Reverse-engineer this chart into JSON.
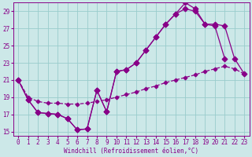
{
  "xlabel": "Windchill (Refroidissement éolien,°C)",
  "ylabel": "",
  "xlim": [
    -0.5,
    23.5
  ],
  "ylim": [
    14.5,
    30.0
  ],
  "xticks": [
    0,
    1,
    2,
    3,
    4,
    5,
    6,
    7,
    8,
    9,
    10,
    11,
    12,
    13,
    14,
    15,
    16,
    17,
    18,
    19,
    20,
    21,
    22,
    23
  ],
  "yticks": [
    15,
    17,
    19,
    21,
    23,
    25,
    27,
    29
  ],
  "bg_color": "#cce8e8",
  "grid_color": "#99cccc",
  "line_color": "#880088",
  "series": [
    {
      "x": [
        0,
        1,
        2,
        3,
        4,
        5,
        6,
        7,
        8,
        9,
        10,
        11,
        12,
        13,
        14,
        15,
        16,
        17,
        18,
        19,
        20,
        21,
        22,
        23
      ],
      "y": [
        21.0,
        18.7,
        17.2,
        17.1,
        17.0,
        16.5,
        15.2,
        15.3,
        19.8,
        17.3,
        22.0,
        22.2,
        23.0,
        24.5,
        26.0,
        27.5,
        28.7,
        30.0,
        29.3,
        27.5,
        27.3,
        23.5,
        null,
        null
      ],
      "linestyle": "-",
      "marker": "D",
      "markersize": 3.5
    },
    {
      "x": [
        0,
        1,
        2,
        3,
        4,
        5,
        6,
        7,
        8,
        9,
        10,
        11,
        12,
        13,
        14,
        15,
        16,
        17,
        18,
        19,
        20,
        21,
        22,
        23
      ],
      "y": [
        21.0,
        18.7,
        17.2,
        17.1,
        17.0,
        16.5,
        15.2,
        15.3,
        19.8,
        17.3,
        22.0,
        22.2,
        23.0,
        24.5,
        26.0,
        27.5,
        28.7,
        29.3,
        29.0,
        27.5,
        27.5,
        27.3,
        23.5,
        21.7
      ],
      "linestyle": "-",
      "marker": "D",
      "markersize": 3.5
    },
    {
      "x": [
        0,
        1,
        2,
        3,
        4,
        5,
        6,
        7,
        8,
        9,
        10,
        11,
        12,
        13,
        14,
        15,
        16,
        17,
        18,
        19,
        20,
        21,
        22,
        23
      ],
      "y": [
        21.0,
        19.0,
        18.5,
        18.3,
        18.3,
        18.2,
        18.2,
        18.3,
        18.5,
        18.7,
        19.0,
        19.3,
        19.6,
        20.0,
        20.3,
        20.7,
        21.0,
        21.3,
        21.6,
        22.0,
        22.3,
        22.6,
        22.3,
        21.7
      ],
      "linestyle": "--",
      "marker": "D",
      "markersize": 2.5
    }
  ]
}
